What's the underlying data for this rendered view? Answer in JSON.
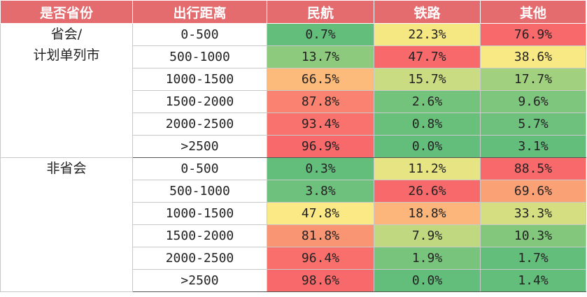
{
  "headers": [
    "是否省份",
    "出行距离",
    "民航",
    "铁路",
    "其他"
  ],
  "groups": [
    {
      "label_lines": [
        "省会/",
        "计划单列市"
      ],
      "rows": [
        {
          "range": "0-500",
          "values": [
            "0.7%",
            "22.3%",
            "76.9%"
          ]
        },
        {
          "range": "500-1000",
          "values": [
            "13.7%",
            "47.7%",
            "38.6%"
          ]
        },
        {
          "range": "1000-1500",
          "values": [
            "66.5%",
            "15.7%",
            "17.7%"
          ]
        },
        {
          "range": "1500-2000",
          "values": [
            "87.8%",
            "2.6%",
            "9.6%"
          ]
        },
        {
          "range": "2000-2500",
          "values": [
            "93.4%",
            "0.8%",
            "5.7%"
          ]
        },
        {
          "range": ">2500",
          "values": [
            "96.9%",
            "0.0%",
            "3.1%"
          ]
        }
      ]
    },
    {
      "label_lines": [
        "非省会"
      ],
      "rows": [
        {
          "range": "0-500",
          "values": [
            "0.3%",
            "11.2%",
            "88.5%"
          ]
        },
        {
          "range": "500-1000",
          "values": [
            "3.8%",
            "26.6%",
            "69.6%"
          ]
        },
        {
          "range": "1000-1500",
          "values": [
            "47.8%",
            "18.8%",
            "33.3%"
          ]
        },
        {
          "range": "1500-2000",
          "values": [
            "81.8%",
            "7.9%",
            "10.3%"
          ]
        },
        {
          "range": "2000-2500",
          "values": [
            "96.4%",
            "1.9%",
            "1.7%"
          ]
        },
        {
          "range": ">2500",
          "values": [
            "98.6%",
            "0.0%",
            "1.4%"
          ]
        }
      ]
    }
  ],
  "colors": {
    "header_bg": "#e46b6e",
    "scale_low": "#63be7b",
    "scale_mid": "#ffeb84",
    "scale_high": "#f8696b"
  }
}
